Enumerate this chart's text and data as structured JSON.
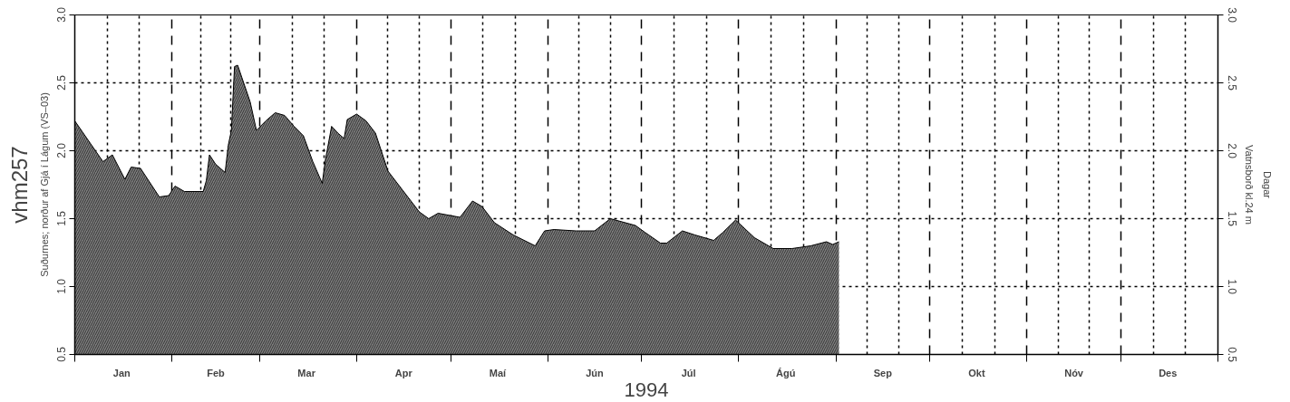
{
  "chart_data": {
    "type": "area",
    "title": "vhm257",
    "xlabel": "1994",
    "ylabel": "Suðurnes; norður af Gjá í Lágum (VS–03)",
    "y2label": "Vatnsborð kl.24 m",
    "annotations": [
      "Dagar"
    ],
    "x": [
      "1994-01-01",
      "1994-01-10",
      "1994-01-13",
      "1994-01-17",
      "1994-01-19",
      "1994-01-22",
      "1994-01-26",
      "1994-01-28",
      "1994-01-31",
      "1994-02-02",
      "1994-02-05",
      "1994-02-11",
      "1994-02-12",
      "1994-02-13",
      "1994-02-15",
      "1994-02-18",
      "1994-02-19",
      "1994-02-20",
      "1994-02-21",
      "1994-02-22",
      "1994-02-26",
      "1994-02-28",
      "1994-03-03",
      "1994-03-06",
      "1994-03-09",
      "1994-03-12",
      "1994-03-15",
      "1994-03-18",
      "1994-03-21",
      "1994-03-22",
      "1994-03-24",
      "1994-03-26",
      "1994-03-28",
      "1994-03-29",
      "1994-04-01",
      "1994-04-04",
      "1994-04-07",
      "1994-04-11",
      "1994-04-15",
      "1994-04-21",
      "1994-04-24",
      "1994-04-27",
      "1994-05-04",
      "1994-05-08",
      "1994-05-11",
      "1994-05-15",
      "1994-05-21",
      "1994-05-28",
      "1994-05-31",
      "1994-06-03",
      "1994-06-10",
      "1994-06-16",
      "1994-06-21",
      "1994-06-29",
      "1994-07-02",
      "1994-07-07",
      "1994-07-09",
      "1994-07-14",
      "1994-07-18",
      "1994-07-24",
      "1994-07-27",
      "1994-07-31",
      "1994-08-06",
      "1994-08-12",
      "1994-08-18",
      "1994-08-24",
      "1994-08-29",
      "1994-08-31",
      "1994-09-02"
    ],
    "series": [
      {
        "color": "#7f7f7f",
        "values": [
          2.22,
          1.92,
          1.97,
          1.79,
          1.88,
          1.87,
          1.73,
          1.66,
          1.67,
          1.74,
          1.7,
          1.7,
          1.78,
          1.97,
          1.9,
          1.84,
          2.04,
          2.15,
          2.62,
          2.63,
          2.36,
          2.15,
          2.22,
          2.28,
          2.26,
          2.18,
          2.11,
          1.92,
          1.76,
          1.93,
          2.18,
          2.13,
          2.09,
          2.23,
          2.27,
          2.22,
          2.13,
          1.85,
          1.73,
          1.55,
          1.5,
          1.54,
          1.51,
          1.63,
          1.59,
          1.47,
          1.38,
          1.3,
          1.41,
          1.42,
          1.41,
          1.41,
          1.5,
          1.45,
          1.4,
          1.32,
          1.32,
          1.41,
          1.38,
          1.34,
          1.4,
          1.49,
          1.36,
          1.28,
          1.28,
          1.3,
          1.33,
          1.31,
          1.33
        ]
      }
    ],
    "xlim": [
      "1994-01-01",
      "1995-01-01"
    ],
    "xticks": [
      {
        "value": "1994-01-01",
        "label": null
      },
      {
        "value": "1994-01-16",
        "label": "Jan"
      },
      {
        "value": "1994-02-01",
        "label": null
      },
      {
        "value": "1994-02-15",
        "label": "Feb"
      },
      {
        "value": "1994-03-01",
        "label": null
      },
      {
        "value": "1994-03-16",
        "label": "Mar"
      },
      {
        "value": "1994-04-01",
        "label": null
      },
      {
        "value": "1994-04-16",
        "label": "Apr"
      },
      {
        "value": "1994-05-01",
        "label": null
      },
      {
        "value": "1994-05-16",
        "label": "Maí"
      },
      {
        "value": "1994-06-01",
        "label": null
      },
      {
        "value": "1994-06-16",
        "label": "Jún"
      },
      {
        "value": "1994-07-01",
        "label": null
      },
      {
        "value": "1994-07-16",
        "label": "Júl"
      },
      {
        "value": "1994-08-01",
        "label": null
      },
      {
        "value": "1994-08-16",
        "label": "Ágú"
      },
      {
        "value": "1994-09-01",
        "label": null
      },
      {
        "value": "1994-09-16",
        "label": "Sep"
      },
      {
        "value": "1994-10-01",
        "label": null
      },
      {
        "value": "1994-10-16",
        "label": "Okt"
      },
      {
        "value": "1994-11-01",
        "label": null
      },
      {
        "value": "1994-11-16",
        "label": "Nóv"
      },
      {
        "value": "1994-12-01",
        "label": null
      },
      {
        "value": "1994-12-16",
        "label": "Des"
      },
      {
        "value": "1995-01-01",
        "label": null
      }
    ],
    "ylim": [
      0.5,
      3.0
    ],
    "yticks": [
      0.5,
      {
        "value": 1,
        "label": "1.0"
      },
      1.5,
      {
        "value": 2,
        "label": "2.0"
      },
      2.5,
      {
        "value": 3,
        "label": "3.0"
      }
    ],
    "y2lim": [
      0.5,
      3.0
    ],
    "y2ticks": [
      0.5,
      {
        "value": 1,
        "label": "1.0"
      },
      1.5,
      {
        "value": 2,
        "label": "2.0"
      },
      2.5,
      {
        "value": 3,
        "label": "3.0"
      }
    ],
    "grid": true
  }
}
